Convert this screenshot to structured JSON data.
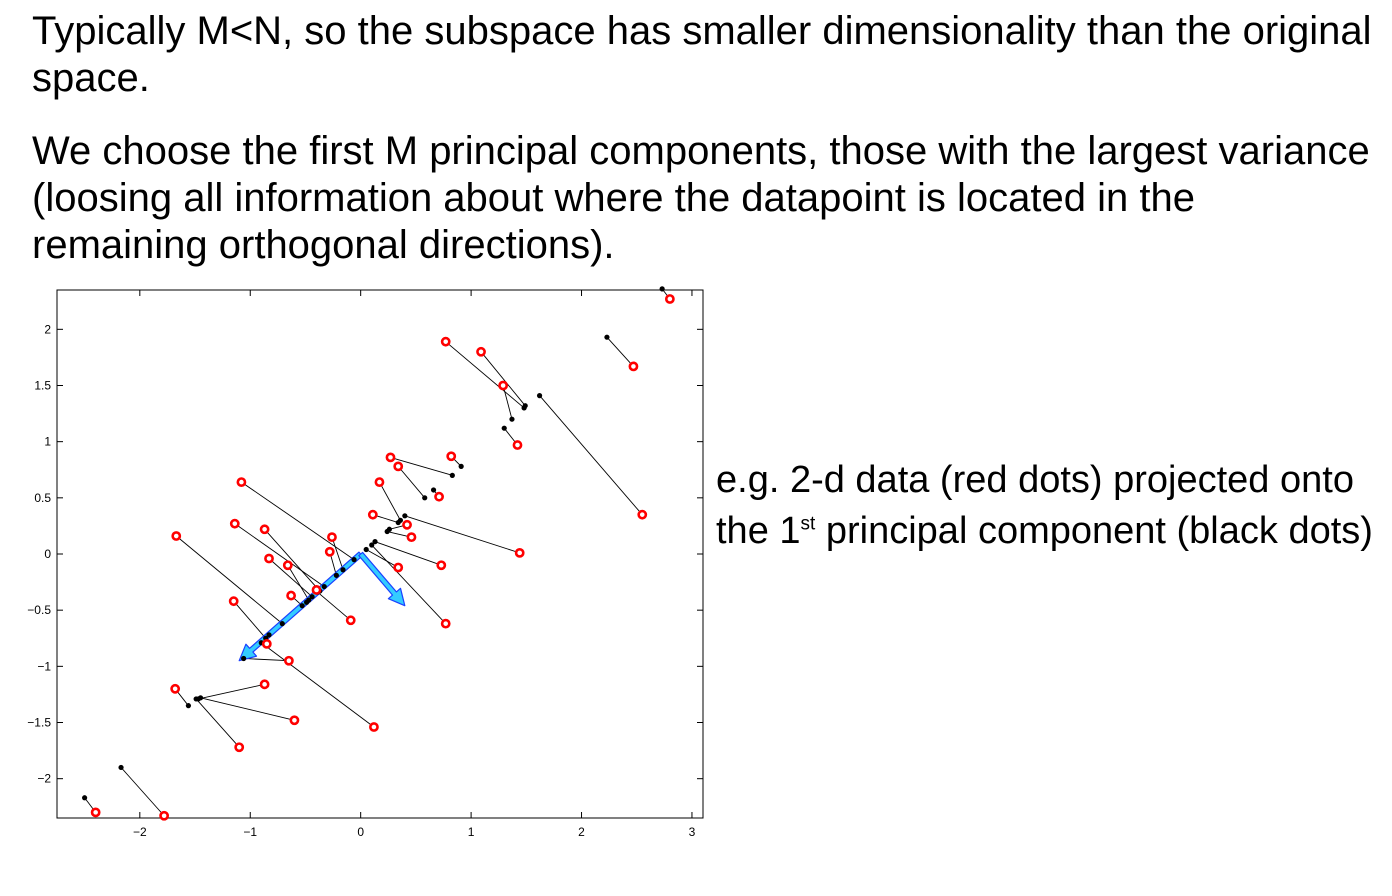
{
  "text": {
    "paragraph1": "Typically M<N, so the subspace has smaller dimensionality than the original space.",
    "paragraph2": "We choose the first M principal components, those with the largest variance (loosing all information about where the datapoint is located in the remaining orthogonal directions).",
    "caption_prefix": "e.g. 2-d data (red dots) projected onto the 1",
    "caption_superscript": "st",
    "caption_suffix": " principal component (black dots)"
  },
  "colors": {
    "data_point": "#ff0000",
    "projection": "#000000",
    "projection_line": "#000000",
    "arrow_fill": "#33ccff",
    "arrow_outline": "#1a40ff"
  },
  "chart_data": {
    "type": "scatter",
    "xlim": [
      -2.75,
      3.1
    ],
    "ylim": [
      -2.35,
      2.35
    ],
    "xticks": [
      -2,
      -1,
      0,
      1,
      2,
      3
    ],
    "yticks": [
      -2,
      -1.5,
      -1,
      -0.5,
      0,
      0.5,
      1,
      1.5,
      2
    ],
    "xtick_labels": [
      "−2",
      "−1",
      "0",
      "1",
      "2",
      "3"
    ],
    "ytick_labels": [
      "−2",
      "−1.5",
      "−1",
      "−0.5",
      "0",
      "0.5",
      "1",
      "1.5",
      "2"
    ],
    "grid": false,
    "legend": "none",
    "points": [
      {
        "red": [
          2.8,
          2.27
        ],
        "black": [
          2.73,
          2.36
        ]
      },
      {
        "red": [
          2.47,
          1.67
        ],
        "black": [
          2.23,
          1.93
        ]
      },
      {
        "red": [
          0.77,
          1.89
        ],
        "black": [
          1.48,
          1.3
        ]
      },
      {
        "red": [
          1.09,
          1.8
        ],
        "black": [
          1.49,
          1.32
        ]
      },
      {
        "red": [
          1.29,
          1.5
        ],
        "black": [
          1.37,
          1.2
        ]
      },
      {
        "red": [
          1.42,
          0.97
        ],
        "black": [
          1.3,
          1.12
        ]
      },
      {
        "red": [
          2.55,
          0.35
        ],
        "black": [
          1.62,
          1.41
        ]
      },
      {
        "red": [
          0.82,
          0.87
        ],
        "black": [
          0.91,
          0.78
        ]
      },
      {
        "red": [
          0.27,
          0.86
        ],
        "black": [
          0.83,
          0.7
        ]
      },
      {
        "red": [
          0.34,
          0.78
        ],
        "black": [
          0.58,
          0.5
        ]
      },
      {
        "red": [
          0.71,
          0.51
        ],
        "black": [
          0.66,
          0.57
        ]
      },
      {
        "red": [
          0.17,
          0.64
        ],
        "black": [
          0.36,
          0.3
        ]
      },
      {
        "red": [
          1.44,
          0.01
        ],
        "black": [
          0.4,
          0.34
        ]
      },
      {
        "red": [
          0.11,
          0.35
        ],
        "black": [
          0.34,
          0.28
        ]
      },
      {
        "red": [
          0.42,
          0.26
        ],
        "black": [
          0.26,
          0.22
        ]
      },
      {
        "red": [
          0.46,
          0.15
        ],
        "black": [
          0.24,
          0.2
        ]
      },
      {
        "red": [
          0.73,
          -0.1
        ],
        "black": [
          0.13,
          0.11
        ]
      },
      {
        "red": [
          0.77,
          -0.62
        ],
        "black": [
          0.1,
          0.08
        ]
      },
      {
        "red": [
          0.34,
          -0.12
        ],
        "black": [
          0.05,
          0.04
        ]
      },
      {
        "red": [
          -1.08,
          0.64
        ],
        "black": [
          -0.06,
          -0.05
        ]
      },
      {
        "red": [
          -0.26,
          0.15
        ],
        "black": [
          -0.16,
          -0.14
        ]
      },
      {
        "red": [
          -0.28,
          0.02
        ],
        "black": [
          -0.22,
          -0.19
        ]
      },
      {
        "red": [
          -1.14,
          0.27
        ],
        "black": [
          -0.33,
          -0.29
        ]
      },
      {
        "red": [
          -0.87,
          0.22
        ],
        "black": [
          -0.37,
          -0.33
        ]
      },
      {
        "red": [
          -0.83,
          -0.04
        ],
        "black": [
          -0.44,
          -0.38
        ]
      },
      {
        "red": [
          -0.66,
          -0.1
        ],
        "black": [
          -0.47,
          -0.41
        ]
      },
      {
        "red": [
          -0.4,
          -0.32
        ],
        "black": [
          -0.49,
          -0.43
        ]
      },
      {
        "red": [
          -0.63,
          -0.37
        ],
        "black": [
          -0.53,
          -0.46
        ]
      },
      {
        "red": [
          -0.09,
          -0.59
        ],
        "black": [
          -0.39,
          -0.34
        ]
      },
      {
        "red": [
          -1.67,
          0.16
        ],
        "black": [
          -0.71,
          -0.62
        ]
      },
      {
        "red": [
          -1.15,
          -0.42
        ],
        "black": [
          -0.86,
          -0.75
        ]
      },
      {
        "red": [
          -0.85,
          -0.8
        ],
        "black": [
          -0.83,
          -0.72
        ]
      },
      {
        "red": [
          -0.65,
          -0.95
        ],
        "black": [
          -1.06,
          -0.93
        ]
      },
      {
        "red": [
          0.12,
          -1.54
        ],
        "black": [
          -0.9,
          -0.79
        ]
      },
      {
        "red": [
          -1.68,
          -1.2
        ],
        "black": [
          -1.56,
          -1.35
        ]
      },
      {
        "red": [
          -0.87,
          -1.16
        ],
        "black": [
          -1.47,
          -1.29
        ]
      },
      {
        "red": [
          -1.1,
          -1.72
        ],
        "black": [
          -1.49,
          -1.29
        ]
      },
      {
        "red": [
          -0.6,
          -1.48
        ],
        "black": [
          -1.45,
          -1.28
        ]
      },
      {
        "red": [
          -1.78,
          -2.33
        ],
        "black": [
          -2.17,
          -1.9
        ]
      },
      {
        "red": [
          -2.4,
          -2.3
        ],
        "black": [
          -2.5,
          -2.17
        ]
      }
    ],
    "arrows": [
      {
        "from": [
          0,
          0
        ],
        "to": [
          -1.1,
          -0.95
        ]
      },
      {
        "from": [
          0,
          0
        ],
        "to": [
          0.4,
          -0.46
        ]
      }
    ]
  }
}
